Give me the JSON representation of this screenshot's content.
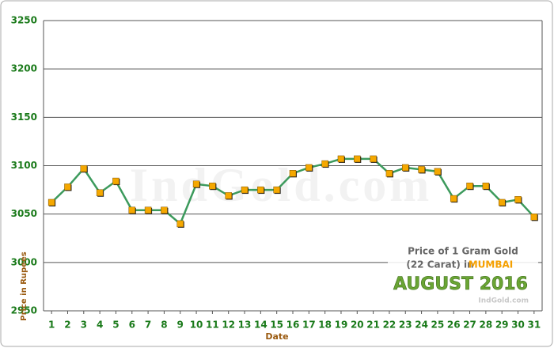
{
  "chart_data": {
    "type": "line",
    "x": [
      1,
      2,
      3,
      4,
      5,
      6,
      7,
      8,
      9,
      10,
      11,
      12,
      13,
      14,
      15,
      16,
      17,
      18,
      19,
      20,
      21,
      22,
      23,
      24,
      25,
      26,
      27,
      28,
      29,
      30,
      31
    ],
    "series": [
      {
        "name": "Price of 1 Gram Gold",
        "color": "#3c9a5c",
        "marker_color": "#f5a800",
        "values": [
          3062,
          3078,
          3097,
          3072,
          3084,
          3054,
          3054,
          3054,
          3040,
          3081,
          3079,
          3069,
          3075,
          3075,
          3075,
          3092,
          3098,
          3102,
          3107,
          3107,
          3107,
          3092,
          3098,
          3096,
          3094,
          3066,
          3079,
          3079,
          3062,
          3065,
          3047
        ]
      }
    ],
    "xlim": [
      0.5,
      31.5
    ],
    "xticks": [
      1,
      2,
      3,
      4,
      5,
      6,
      7,
      8,
      9,
      10,
      11,
      12,
      13,
      14,
      15,
      16,
      17,
      18,
      19,
      20,
      21,
      22,
      23,
      24,
      25,
      26,
      27,
      28,
      29,
      30,
      31
    ],
    "ylim": [
      2950,
      3250
    ],
    "yticks": [
      2950,
      3000,
      3050,
      3100,
      3150,
      3200,
      3250
    ],
    "grid": true,
    "x_label": "Date",
    "y_label": "Price in Rupees",
    "annotation_line1": "Price of 1 Gram Gold",
    "annotation_line2": "(22 Carat) in",
    "annotation_city": "MUMBAI",
    "annotation_month": "AUGUST 2016",
    "source": "IndGold.com",
    "watermark": "IndGold.com"
  }
}
